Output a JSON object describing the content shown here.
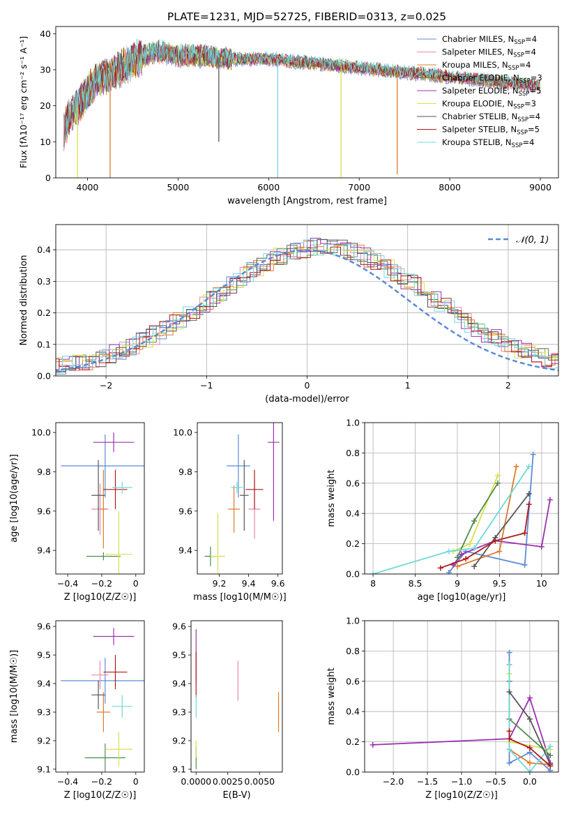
{
  "figure": {
    "title": "PLATE=1231, MJD=52725, FIBERID=0313, z=0.025"
  },
  "colors": {
    "Chabrier MILES": "#5b8bd6",
    "Salpeter MILES": "#e888aa",
    "Kroupa MILES": "#e07a2b",
    "Chabrier ELODIE": "#4e8a4e",
    "Salpeter ELODIE": "#9b30b0",
    "Kroupa ELODIE": "#d8e04a",
    "Chabrier STELIB": "#555555",
    "Salpeter STELIB": "#b01818",
    "Kroupa STELIB": "#6fd8dc"
  },
  "chart_data": [
    {
      "id": "spectrum",
      "type": "line",
      "title": "PLATE=1231, MJD=52725, FIBERID=0313, z=0.025",
      "xlabel": "wavelength [Angstrom, rest frame]",
      "ylabel": "Flux [fλ10⁻¹⁷ erg cm⁻² s⁻¹ A⁻¹]",
      "xlim": [
        3650,
        9200
      ],
      "ylim": [
        0,
        42
      ],
      "xticks": [
        4000,
        5000,
        6000,
        7000,
        8000,
        9000
      ],
      "yticks": [
        0,
        10,
        20,
        30,
        40
      ],
      "legend_position": "top-right",
      "legend": [
        "Chabrier MILES, N_SSP=4",
        "Salpeter MILES, N_SSP=4",
        "Kroupa MILES, N_SSP=4",
        "Chabrier ELODIE, N_SSP=3",
        "Salpeter ELODIE, N_SSP=5",
        "Kroupa ELODIE, N_SSP=3",
        "Chabrier STELIB, N_SSP=4",
        "Salpeter STELIB, N_SSP=5",
        "Kroupa STELIB, N_SSP=4"
      ],
      "continuum": {
        "x": [
          3740,
          3800,
          3900,
          4000,
          4100,
          4200,
          4300,
          4400,
          4500,
          4600,
          4700,
          4800,
          5000,
          5200,
          5400,
          5600,
          5800,
          6000,
          6200,
          6400,
          6600,
          6800,
          7000,
          7200,
          7400,
          7600,
          7800,
          8000,
          8200,
          8400,
          8600,
          8800,
          9000
        ],
        "y": [
          13,
          17,
          20,
          24,
          27,
          28,
          29.5,
          31,
          32.5,
          33.5,
          34.5,
          35,
          34,
          34,
          33.5,
          33,
          33,
          33,
          32.5,
          32,
          31.5,
          31,
          30.5,
          30,
          29.5,
          29,
          28.5,
          28,
          27.5,
          27,
          26.5,
          26,
          25.5
        ]
      },
      "dips": [
        {
          "x": 3890,
          "y": 0,
          "series": "Kroupa ELODIE"
        },
        {
          "x": 4250,
          "y": 0,
          "series": "Kroupa MILES"
        },
        {
          "x": 5450,
          "y": 10,
          "series": "Chabrier STELIB"
        },
        {
          "x": 6100,
          "y": 0,
          "series": "Kroupa STELIB"
        },
        {
          "x": 6800,
          "y": 0,
          "series": "Kroupa ELODIE"
        },
        {
          "x": 7420,
          "y": 1,
          "series": "Kroupa MILES"
        }
      ]
    },
    {
      "id": "residuals",
      "type": "histogram",
      "xlabel": "(data-model)/error",
      "ylabel": "Normed distribution",
      "xlim": [
        -2.5,
        2.5
      ],
      "ylim": [
        0,
        0.48
      ],
      "xticks": [
        -2,
        -1,
        0,
        1,
        2
      ],
      "xticklabels": [
        "−2",
        "−1",
        "0",
        "1",
        "2"
      ],
      "yticks": [
        0.0,
        0.1,
        0.2,
        0.3,
        0.4
      ],
      "grid": true,
      "legend_position": "top-right",
      "legend": [
        "N(0,1)"
      ],
      "normal_curve": {
        "mean": 0,
        "sd": 1
      }
    },
    {
      "id": "age_vs_Z",
      "type": "errorbar",
      "xlabel": "Z [log10(Z/Z☉)]",
      "ylabel": "age [log10(age/yr)]",
      "xlim": [
        -0.47,
        0.05
      ],
      "ylim": [
        9.28,
        10.05
      ],
      "xticks": [
        -0.4,
        -0.2,
        0.0
      ],
      "yticks": [
        9.4,
        9.6,
        9.8,
        10.0
      ],
      "points": [
        {
          "series": "Chabrier MILES",
          "x": -0.18,
          "y": 9.83,
          "xerr": 0.26,
          "yerr": 0.16
        },
        {
          "series": "Salpeter MILES",
          "x": -0.21,
          "y": 9.61,
          "xerr": 0.05,
          "yerr": 0.13
        },
        {
          "series": "Kroupa MILES",
          "x": -0.19,
          "y": 9.61,
          "xerr": 0.02,
          "yerr": 0.2
        },
        {
          "series": "Chabrier ELODIE",
          "x": -0.19,
          "y": 9.37,
          "xerr": 0.1,
          "yerr": 0.02
        },
        {
          "series": "Salpeter ELODIE",
          "x": -0.13,
          "y": 9.95,
          "xerr": 0.12,
          "yerr": 0.05
        },
        {
          "series": "Kroupa ELODIE",
          "x": -0.1,
          "y": 9.38,
          "xerr": 0.08,
          "yerr": 0.22
        },
        {
          "series": "Chabrier STELIB",
          "x": -0.22,
          "y": 9.68,
          "xerr": 0.04,
          "yerr": 0.18
        },
        {
          "series": "Salpeter STELIB",
          "x": -0.12,
          "y": 9.71,
          "xerr": 0.07,
          "yerr": 0.1
        },
        {
          "series": "Kroupa STELIB",
          "x": -0.08,
          "y": 9.72,
          "xerr": 0.06,
          "yerr": 0.03
        }
      ]
    },
    {
      "id": "age_vs_mass",
      "type": "errorbar",
      "xlabel": "mass [log10(M/M☉)]",
      "ylabel": "",
      "xlim": [
        9.05,
        9.63
      ],
      "ylim": [
        9.28,
        10.05
      ],
      "xticks": [
        9.2,
        9.4,
        9.6
      ],
      "yticks": [
        9.4,
        9.6,
        9.8,
        10.0
      ],
      "points": [
        {
          "series": "Chabrier MILES",
          "x": 9.33,
          "y": 9.83,
          "xerr": 0.08,
          "yerr": 0.16
        },
        {
          "series": "Salpeter MILES",
          "x": 9.44,
          "y": 9.61,
          "xerr": 0.04,
          "yerr": 0.15
        },
        {
          "series": "Kroupa MILES",
          "x": 9.3,
          "y": 9.61,
          "xerr": 0.04,
          "yerr": 0.12
        },
        {
          "series": "Chabrier ELODIE",
          "x": 9.14,
          "y": 9.37,
          "xerr": 0.04,
          "yerr": 0.05
        },
        {
          "series": "Salpeter ELODIE",
          "x": 9.57,
          "y": 9.95,
          "xerr": 0.04,
          "yerr": 0.4
        },
        {
          "series": "Kroupa ELODIE",
          "x": 9.19,
          "y": 9.37,
          "xerr": 0.05,
          "yerr": 0.22
        },
        {
          "series": "Chabrier STELIB",
          "x": 9.37,
          "y": 9.68,
          "xerr": 0.03,
          "yerr": 0.18
        },
        {
          "series": "Salpeter STELIB",
          "x": 9.44,
          "y": 9.71,
          "xerr": 0.06,
          "yerr": 0.1
        },
        {
          "series": "Kroupa STELIB",
          "x": 9.32,
          "y": 9.72,
          "xerr": 0.04,
          "yerr": 0.03
        }
      ]
    },
    {
      "id": "massweight_vs_age",
      "type": "line",
      "xlabel": "age [log10(age/yr)]",
      "ylabel": "mass weight",
      "xlim": [
        7.9,
        10.2
      ],
      "ylim": [
        0,
        1
      ],
      "xticks": [
        8.0,
        8.5,
        9.0,
        9.5,
        10.0
      ],
      "yticks": [
        0.0,
        0.2,
        0.4,
        0.6,
        0.8,
        1.0
      ],
      "grid": true,
      "series": [
        {
          "series": "Chabrier MILES",
          "x": [
            8.9,
            9.1,
            9.8,
            9.9
          ],
          "y": [
            0.01,
            0.15,
            0.06,
            0.79
          ]
        },
        {
          "series": "Kroupa MILES",
          "x": [
            9.0,
            9.5,
            9.7
          ],
          "y": [
            0.05,
            0.15,
            0.71
          ]
        },
        {
          "series": "Salpeter ELODIE",
          "x": [
            8.95,
            9.05,
            9.45,
            10.0,
            10.1
          ],
          "y": [
            0.06,
            0.13,
            0.22,
            0.18,
            0.49
          ]
        },
        {
          "series": "Kroupa ELODIE",
          "x": [
            8.95,
            9.15,
            9.48
          ],
          "y": [
            0.15,
            0.2,
            0.65
          ]
        },
        {
          "series": "Chabrier ELODIE",
          "x": [
            9.0,
            9.2,
            9.48
          ],
          "y": [
            0.11,
            0.35,
            0.6
          ]
        },
        {
          "series": "Kroupa STELIB",
          "x": [
            8.0,
            8.9,
            9.2,
            9.85
          ],
          "y": [
            0.0,
            0.15,
            0.17,
            0.71
          ]
        },
        {
          "series": "Chabrier STELIB",
          "x": [
            9.2,
            9.45,
            9.85
          ],
          "y": [
            0.05,
            0.24,
            0.53
          ]
        },
        {
          "series": "Salpeter STELIB",
          "x": [
            8.8,
            9.1,
            9.45,
            9.8,
            9.85
          ],
          "y": [
            0.04,
            0.1,
            0.22,
            0.27,
            0.46
          ]
        }
      ]
    },
    {
      "id": "mass_vs_Z",
      "type": "errorbar",
      "xlabel": "Z [log10(Z/Z☉)]",
      "ylabel": "mass [log10(M/M☉)]",
      "xlim": [
        -0.47,
        0.05
      ],
      "ylim": [
        9.09,
        9.62
      ],
      "xticks": [
        -0.4,
        -0.2,
        0.0
      ],
      "yticks": [
        9.1,
        9.2,
        9.3,
        9.4,
        9.5,
        9.6
      ],
      "points": [
        {
          "series": "Chabrier MILES",
          "x": -0.18,
          "y": 9.41,
          "xerr": 0.26,
          "yerr": 0.08
        },
        {
          "series": "Salpeter MILES",
          "x": -0.21,
          "y": 9.43,
          "xerr": 0.05,
          "yerr": 0.05
        },
        {
          "series": "Kroupa MILES",
          "x": -0.19,
          "y": 9.3,
          "xerr": 0.04,
          "yerr": 0.07
        },
        {
          "series": "Chabrier ELODIE",
          "x": -0.18,
          "y": 9.14,
          "xerr": 0.12,
          "yerr": 0.05
        },
        {
          "series": "Salpeter ELODIE",
          "x": -0.13,
          "y": 9.565,
          "xerr": 0.12,
          "yerr": 0.03
        },
        {
          "series": "Kroupa ELODIE",
          "x": -0.1,
          "y": 9.17,
          "xerr": 0.08,
          "yerr": 0.06
        },
        {
          "series": "Chabrier STELIB",
          "x": -0.22,
          "y": 9.36,
          "xerr": 0.04,
          "yerr": 0.05
        },
        {
          "series": "Salpeter STELIB",
          "x": -0.12,
          "y": 9.44,
          "xerr": 0.07,
          "yerr": 0.06
        },
        {
          "series": "Kroupa STELIB",
          "x": -0.08,
          "y": 9.32,
          "xerr": 0.06,
          "yerr": 0.04
        }
      ]
    },
    {
      "id": "mass_vs_ebv",
      "type": "errorbar",
      "xlabel": "E(B-V)",
      "ylabel": "",
      "xlim": [
        -0.0004,
        0.0068
      ],
      "ylim": [
        9.09,
        9.62
      ],
      "xticks": [
        0.0,
        0.0025,
        0.005
      ],
      "xticklabels": [
        "0.0000",
        "0.0025",
        "0.0050"
      ],
      "yticks": [
        9.1,
        9.2,
        9.3,
        9.4,
        9.5,
        9.6
      ],
      "points": [
        {
          "series": "Salpeter ELODIE",
          "x": 0.0,
          "y": 9.5,
          "xerr": 0,
          "yerr": 0.09
        },
        {
          "series": "Salpeter STELIB",
          "x": 0.0,
          "y": 9.43,
          "xerr": 0,
          "yerr": 0.08
        },
        {
          "series": "Kroupa STELIB",
          "x": 0.0,
          "y": 9.32,
          "xerr": 0,
          "yerr": 0.04
        },
        {
          "series": "Chabrier ELODIE",
          "x": 0.0,
          "y": 9.14,
          "xerr": 0,
          "yerr": 0.04
        },
        {
          "series": "Kroupa ELODIE",
          "x": 0.0,
          "y": 9.17,
          "xerr": 0,
          "yerr": 0.03
        },
        {
          "series": "Salpeter MILES",
          "x": 0.0033,
          "y": 9.41,
          "xerr": 0,
          "yerr": 0.07
        },
        {
          "series": "Kroupa MILES",
          "x": 0.0065,
          "y": 9.3,
          "xerr": 0,
          "yerr": 0.07
        }
      ]
    },
    {
      "id": "massweight_vs_Z",
      "type": "line",
      "xlabel": "Z [log10(Z/Z☉)]",
      "ylabel": "mass weight",
      "xlim": [
        -2.42,
        0.42
      ],
      "ylim": [
        0,
        1
      ],
      "xticks": [
        -2.0,
        -1.5,
        -1.0,
        -0.5,
        0.0
      ],
      "xticklabels": [
        "−2.0",
        "−1.5",
        "−1.0",
        "−0.5",
        "0.0"
      ],
      "yticks": [
        0.0,
        0.2,
        0.4,
        0.6,
        0.8,
        1.0
      ],
      "grid": true,
      "series": [
        {
          "series": "Chabrier MILES",
          "x": [
            -0.3,
            -0.3,
            0.0,
            0.3
          ],
          "y": [
            0.79,
            0.06,
            0.13,
            0.01
          ]
        },
        {
          "series": "Kroupa MILES",
          "x": [
            -0.3,
            -0.3,
            0.0,
            0.3
          ],
          "y": [
            0.71,
            0.15,
            0.06,
            0.05
          ]
        },
        {
          "series": "Salpeter ELODIE",
          "x": [
            -2.3,
            -0.3,
            0.0,
            0.3
          ],
          "y": [
            0.18,
            0.22,
            0.49,
            0.06
          ]
        },
        {
          "series": "Kroupa ELODIE",
          "x": [
            -0.3,
            -0.3,
            0.3
          ],
          "y": [
            0.65,
            0.2,
            0.15
          ]
        },
        {
          "series": "Chabrier ELODIE",
          "x": [
            -0.3,
            -0.3,
            0.3
          ],
          "y": [
            0.6,
            0.35,
            0.11
          ]
        },
        {
          "series": "Kroupa STELIB",
          "x": [
            -0.3,
            -0.3,
            0.0,
            0.3
          ],
          "y": [
            0.71,
            0.15,
            0.0,
            0.17
          ]
        },
        {
          "series": "Chabrier STELIB",
          "x": [
            -0.3,
            0.0,
            0.3
          ],
          "y": [
            0.53,
            0.35,
            0.05
          ]
        },
        {
          "series": "Salpeter STELIB",
          "x": [
            -0.3,
            -0.3,
            0.0,
            0.3
          ],
          "y": [
            0.27,
            0.22,
            0.16,
            0.04
          ]
        }
      ]
    }
  ]
}
